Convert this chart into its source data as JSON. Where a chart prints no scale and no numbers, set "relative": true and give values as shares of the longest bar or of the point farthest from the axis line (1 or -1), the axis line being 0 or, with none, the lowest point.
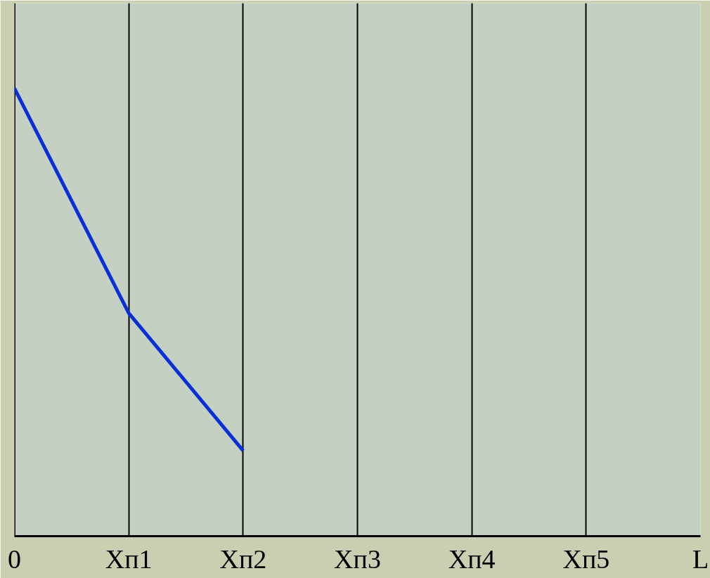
{
  "chart_data": {
    "type": "line",
    "relative": true,
    "categories": [
      "0",
      "Xп1",
      "Xп2",
      "Xп3",
      "Xп4",
      "Xп5",
      "L"
    ],
    "series": [
      {
        "color": "#0a2fd6",
        "values": [
          1,
          0.498,
          0.191,
          null,
          null,
          null,
          null
        ]
      }
    ],
    "grid": "x",
    "line_style": "solid"
  }
}
